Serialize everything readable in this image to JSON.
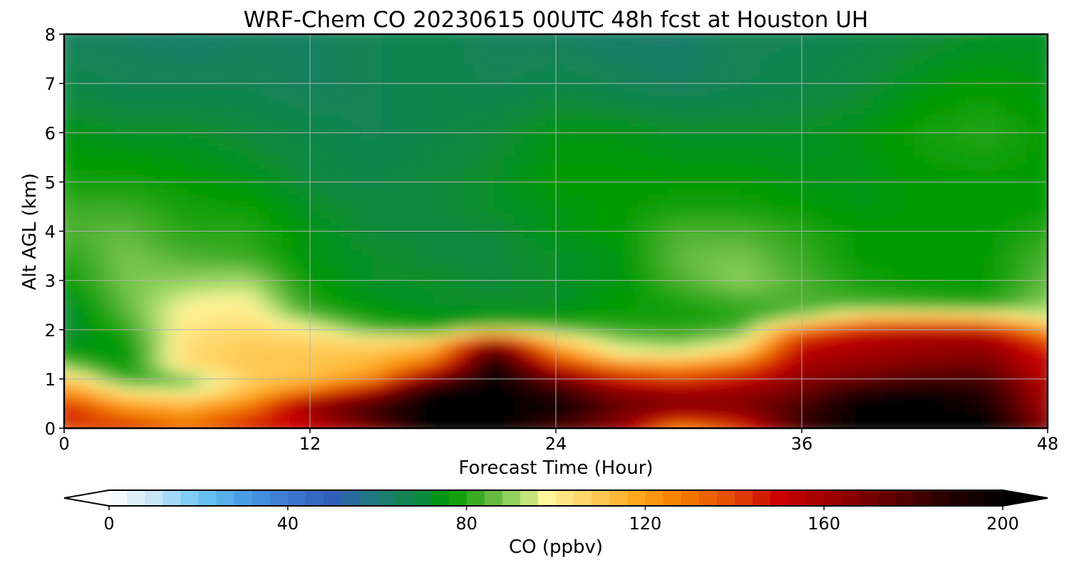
{
  "chart_data": {
    "type": "heatmap",
    "title": "WRF-Chem CO  20230615 00UTC 48h fcst at Houston UH",
    "xlabel": "Forecast Time (Hour)",
    "ylabel": "Alt AGL (km)",
    "xlim": [
      0,
      48
    ],
    "ylim": [
      0,
      8
    ],
    "xticks": [
      0,
      12,
      24,
      36,
      48
    ],
    "yticks": [
      0,
      1,
      2,
      3,
      4,
      5,
      6,
      7,
      8
    ],
    "grid": true,
    "colorbar": {
      "label": "CO  (ppbv)",
      "range": [
        0,
        200
      ],
      "ticks": [
        0,
        40,
        80,
        120,
        160,
        200
      ],
      "extend": "both",
      "orientation": "horizontal",
      "stops": [
        {
          "value": 0,
          "color": "#ffffff"
        },
        {
          "value": 10,
          "color": "#c8e6f8"
        },
        {
          "value": 20,
          "color": "#6ec8f5"
        },
        {
          "value": 30,
          "color": "#4a9ee6"
        },
        {
          "value": 40,
          "color": "#3c78d0"
        },
        {
          "value": 50,
          "color": "#2f5fb8"
        },
        {
          "value": 60,
          "color": "#1f7a78"
        },
        {
          "value": 70,
          "color": "#0a8a3c"
        },
        {
          "value": 76,
          "color": "#009a00"
        },
        {
          "value": 84,
          "color": "#4cb030"
        },
        {
          "value": 92,
          "color": "#a8dc6c"
        },
        {
          "value": 98,
          "color": "#fff59a"
        },
        {
          "value": 108,
          "color": "#ffcf5e"
        },
        {
          "value": 118,
          "color": "#ffa81e"
        },
        {
          "value": 128,
          "color": "#f57d00"
        },
        {
          "value": 140,
          "color": "#e04800"
        },
        {
          "value": 150,
          "color": "#cc0000"
        },
        {
          "value": 162,
          "color": "#9a0000"
        },
        {
          "value": 175,
          "color": "#600000"
        },
        {
          "value": 188,
          "color": "#250000"
        },
        {
          "value": 200,
          "color": "#000000"
        }
      ]
    },
    "x_hours": [
      0,
      3,
      6,
      9,
      12,
      15,
      18,
      21,
      24,
      27,
      30,
      33,
      36,
      39,
      42,
      45,
      48
    ],
    "y_km": [
      0,
      0.25,
      0.5,
      0.75,
      1,
      1.25,
      1.5,
      1.75,
      2,
      2.25,
      2.5,
      3,
      3.5,
      4,
      4.5,
      5,
      6,
      7,
      8
    ],
    "values": [
      [
        135,
        145,
        130,
        145,
        150,
        165,
        200,
        200,
        178,
        165,
        120,
        140,
        180,
        200,
        200,
        200,
        168
      ],
      [
        150,
        132,
        125,
        140,
        158,
        185,
        200,
        200,
        192,
        170,
        155,
        160,
        185,
        200,
        200,
        198,
        160
      ],
      [
        142,
        118,
        112,
        125,
        165,
        178,
        200,
        200,
        196,
        175,
        168,
        168,
        178,
        200,
        200,
        192,
        158
      ],
      [
        125,
        100,
        96,
        112,
        130,
        158,
        198,
        200,
        186,
        165,
        160,
        162,
        172,
        190,
        196,
        188,
        156
      ],
      [
        110,
        80,
        85,
        108,
        112,
        125,
        170,
        198,
        172,
        148,
        140,
        150,
        165,
        172,
        180,
        180,
        154
      ],
      [
        90,
        76,
        104,
        110,
        110,
        115,
        140,
        196,
        150,
        130,
        125,
        135,
        160,
        165,
        170,
        172,
        150
      ],
      [
        78,
        74,
        106,
        110,
        110,
        112,
        120,
        185,
        130,
        100,
        98,
        112,
        156,
        160,
        164,
        166,
        148
      ],
      [
        72,
        76,
        104,
        108,
        108,
        105,
        110,
        165,
        110,
        92,
        88,
        96,
        150,
        156,
        160,
        162,
        140
      ],
      [
        70,
        80,
        102,
        106,
        100,
        85,
        80,
        96,
        88,
        82,
        80,
        84,
        130,
        150,
        154,
        152,
        120
      ],
      [
        70,
        84,
        100,
        102,
        88,
        78,
        74,
        74,
        76,
        78,
        78,
        80,
        90,
        110,
        112,
        108,
        96
      ],
      [
        70,
        86,
        98,
        100,
        80,
        74,
        72,
        72,
        72,
        76,
        78,
        82,
        84,
        84,
        82,
        80,
        90
      ],
      [
        76,
        88,
        90,
        92,
        76,
        72,
        72,
        70,
        72,
        74,
        84,
        90,
        84,
        78,
        76,
        76,
        86
      ],
      [
        80,
        88,
        84,
        82,
        74,
        72,
        70,
        70,
        72,
        74,
        86,
        88,
        82,
        76,
        76,
        76,
        84
      ],
      [
        84,
        86,
        80,
        80,
        74,
        70,
        70,
        70,
        74,
        76,
        84,
        84,
        80,
        76,
        76,
        76,
        80
      ],
      [
        82,
        82,
        78,
        77,
        72,
        70,
        70,
        72,
        74,
        76,
        78,
        78,
        76,
        74,
        76,
        76,
        76
      ],
      [
        78,
        78,
        76,
        74,
        70,
        68,
        70,
        72,
        76,
        76,
        76,
        76,
        74,
        74,
        76,
        76,
        76
      ],
      [
        74,
        72,
        72,
        70,
        68,
        66,
        68,
        70,
        74,
        74,
        72,
        72,
        72,
        74,
        78,
        80,
        76
      ],
      [
        68,
        66,
        66,
        66,
        64,
        66,
        68,
        66,
        68,
        66,
        64,
        66,
        68,
        70,
        74,
        76,
        74
      ],
      [
        64,
        64,
        62,
        64,
        64,
        66,
        68,
        64,
        64,
        62,
        62,
        66,
        66,
        68,
        70,
        72,
        72
      ]
    ]
  }
}
